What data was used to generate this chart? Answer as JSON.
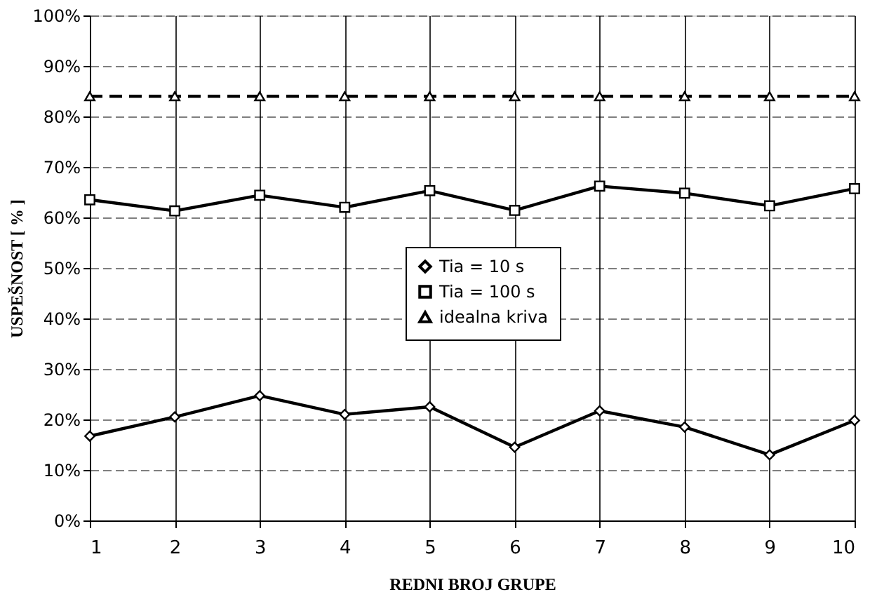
{
  "chart_data": {
    "type": "line",
    "xlabel": "REDNI BROJ GRUPE",
    "ylabel": "USPEŠNOST [ % ]",
    "x": [
      1,
      2,
      3,
      4,
      5,
      6,
      7,
      8,
      9,
      10
    ],
    "series": [
      {
        "name": "Tia = 10 s",
        "color": "#000000",
        "marker": "diamond",
        "line_style": "solid",
        "values": [
          16.7,
          20.5,
          24.7,
          21,
          22.5,
          14.5,
          21.7,
          18.5,
          13,
          19.8
        ]
      },
      {
        "name": "Tia = 100 s",
        "color": "#000000",
        "marker": "square",
        "line_style": "solid",
        "values": [
          63.5,
          61.3,
          64.4,
          62,
          65.3,
          61.4,
          66.2,
          64.8,
          62.3,
          65.7
        ]
      },
      {
        "name": "idealna kriva",
        "color": "#000000",
        "marker": "triangle",
        "line_style": "dashed",
        "values": [
          84,
          84,
          84,
          84,
          84,
          84,
          84,
          84,
          84,
          84
        ]
      }
    ],
    "xlim": [
      1,
      10
    ],
    "xticks": [
      1,
      2,
      3,
      4,
      5,
      6,
      7,
      8,
      9,
      10
    ],
    "ylim": [
      0,
      100
    ],
    "yticks": [
      {
        "value": 0,
        "label": "0%"
      },
      {
        "value": 10,
        "label": "10%"
      },
      {
        "value": 20,
        "label": "20%"
      },
      {
        "value": 30,
        "label": "30%"
      },
      {
        "value": 40,
        "label": "40%"
      },
      {
        "value": 50,
        "label": "50%"
      },
      {
        "value": 60,
        "label": "60%"
      },
      {
        "value": 70,
        "label": "70%"
      },
      {
        "value": 80,
        "label": "80%"
      },
      {
        "value": 90,
        "label": "90%"
      },
      {
        "value": 100,
        "label": "100%"
      }
    ],
    "grid": true,
    "legend": "center"
  }
}
